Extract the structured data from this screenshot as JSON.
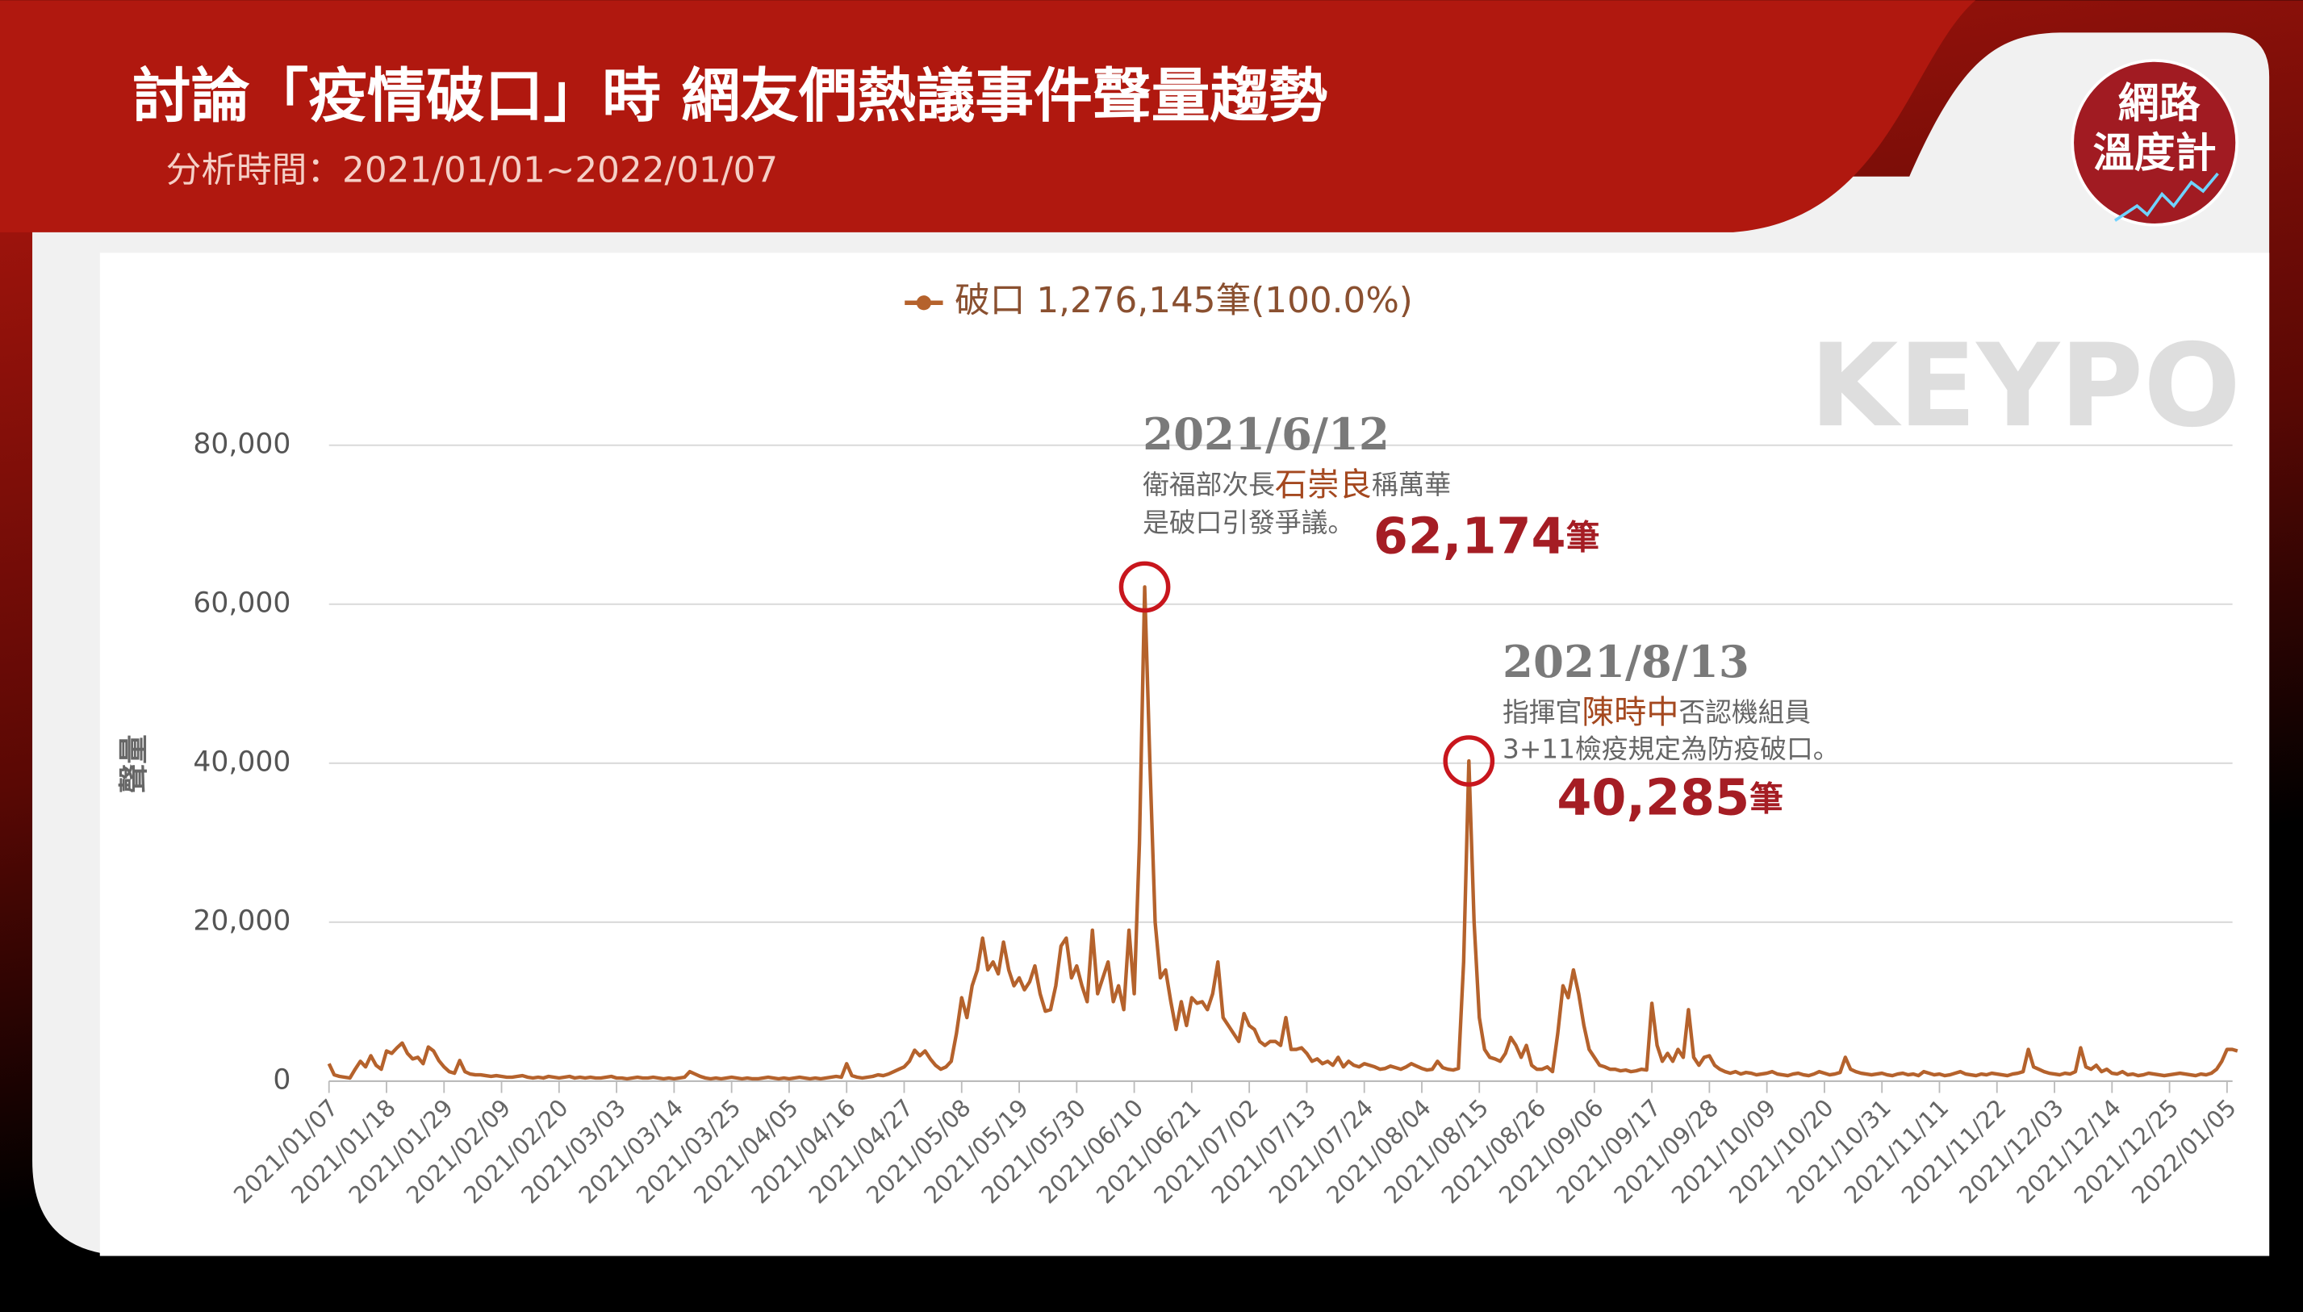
{
  "header": {
    "title": "討論「疫情破口」時  網友們熱議事件聲量趨勢",
    "subtitle": "分析時間：2021/01/01~2022/01/07"
  },
  "logo": {
    "line1": "網路",
    "line2": "溫度計"
  },
  "watermark": "KEYPO",
  "chart_data": {
    "type": "line",
    "y_label": "聲量",
    "grid": true,
    "legend": "top",
    "ylim": [
      0,
      80000
    ],
    "yticks": [
      0,
      {
        "value": 20000,
        "label": "20,000"
      },
      {
        "value": 40000,
        "label": "40,000"
      },
      {
        "value": 60000,
        "label": "60,000"
      },
      {
        "value": 80000,
        "label": "80,000"
      }
    ],
    "categories": [
      "2021/01/07",
      null,
      null,
      null,
      null,
      null,
      null,
      null,
      null,
      null,
      null,
      "2021/01/18",
      null,
      null,
      null,
      null,
      null,
      null,
      null,
      null,
      null,
      null,
      "2021/01/29",
      null,
      null,
      null,
      null,
      null,
      null,
      null,
      null,
      null,
      null,
      "2021/02/09",
      null,
      null,
      null,
      null,
      null,
      null,
      null,
      null,
      null,
      null,
      "2021/02/20",
      null,
      null,
      null,
      null,
      null,
      null,
      null,
      null,
      null,
      null,
      "2021/03/03",
      null,
      null,
      null,
      null,
      null,
      null,
      null,
      null,
      null,
      null,
      "2021/03/14",
      null,
      null,
      null,
      null,
      null,
      null,
      null,
      null,
      null,
      null,
      "2021/03/25",
      null,
      null,
      null,
      null,
      null,
      null,
      null,
      null,
      null,
      null,
      "2021/04/05",
      null,
      null,
      null,
      null,
      null,
      null,
      null,
      null,
      null,
      null,
      "2021/04/16",
      null,
      null,
      null,
      null,
      null,
      null,
      null,
      null,
      null,
      null,
      "2021/04/27",
      null,
      null,
      null,
      null,
      null,
      null,
      null,
      null,
      null,
      null,
      "2021/05/08",
      null,
      null,
      null,
      null,
      null,
      null,
      null,
      null,
      null,
      null,
      "2021/05/19",
      null,
      null,
      null,
      null,
      null,
      null,
      null,
      null,
      null,
      null,
      "2021/05/30",
      null,
      null,
      null,
      null,
      null,
      null,
      null,
      null,
      null,
      null,
      "2021/06/10",
      null,
      null,
      null,
      null,
      null,
      null,
      null,
      null,
      null,
      null,
      "2021/06/21",
      null,
      null,
      null,
      null,
      null,
      null,
      null,
      null,
      null,
      null,
      "2021/07/02",
      null,
      null,
      null,
      null,
      null,
      null,
      null,
      null,
      null,
      null,
      "2021/07/13",
      null,
      null,
      null,
      null,
      null,
      null,
      null,
      null,
      null,
      null,
      "2021/07/24",
      null,
      null,
      null,
      null,
      null,
      null,
      null,
      null,
      null,
      null,
      "2021/08/04",
      null,
      null,
      null,
      null,
      null,
      null,
      null,
      null,
      null,
      null,
      "2021/08/15",
      null,
      null,
      null,
      null,
      null,
      null,
      null,
      null,
      null,
      null,
      "2021/08/26",
      null,
      null,
      null,
      null,
      null,
      null,
      null,
      null,
      null,
      null,
      "2021/09/06",
      null,
      null,
      null,
      null,
      null,
      null,
      null,
      null,
      null,
      null,
      "2021/09/17",
      null,
      null,
      null,
      null,
      null,
      null,
      null,
      null,
      null,
      null,
      "2021/09/28",
      null,
      null,
      null,
      null,
      null,
      null,
      null,
      null,
      null,
      null,
      "2021/10/09",
      null,
      null,
      null,
      null,
      null,
      null,
      null,
      null,
      null,
      null,
      "2021/10/20",
      null,
      null,
      null,
      null,
      null,
      null,
      null,
      null,
      null,
      null,
      "2021/10/31",
      null,
      null,
      null,
      null,
      null,
      null,
      null,
      null,
      null,
      null,
      "2021/11/11",
      null,
      null,
      null,
      null,
      null,
      null,
      null,
      null,
      null,
      null,
      "2021/11/22",
      null,
      null,
      null,
      null,
      null,
      null,
      null,
      null,
      null,
      null,
      "2021/12/03",
      null,
      null,
      null,
      null,
      null,
      null,
      null,
      null,
      null,
      null,
      "2021/12/14",
      null,
      null,
      null,
      null,
      null,
      null,
      null,
      null,
      null,
      null,
      "2021/12/25",
      null,
      null,
      null,
      null,
      null,
      null,
      null,
      null,
      null,
      null,
      "2022/01/05",
      null,
      null
    ],
    "series": [
      {
        "name": "破口 1,276,145筆(100.0%)",
        "color": "#b5622c",
        "values": [
          2200,
          800,
          600,
          500,
          400,
          1500,
          2500,
          1800,
          3200,
          2000,
          1500,
          3800,
          3500,
          4200,
          4800,
          3500,
          2800,
          3000,
          2200,
          4300,
          3800,
          2600,
          1800,
          1200,
          1000,
          2600,
          1200,
          900,
          800,
          800,
          700,
          600,
          700,
          600,
          500,
          500,
          600,
          700,
          500,
          400,
          500,
          400,
          600,
          500,
          400,
          500,
          600,
          400,
          500,
          400,
          500,
          400,
          400,
          500,
          600,
          400,
          400,
          300,
          400,
          500,
          400,
          400,
          500,
          400,
          300,
          400,
          300,
          400,
          500,
          1200,
          900,
          600,
          400,
          300,
          400,
          300,
          400,
          500,
          400,
          300,
          400,
          300,
          300,
          400,
          500,
          400,
          300,
          400,
          300,
          400,
          500,
          400,
          300,
          400,
          300,
          400,
          500,
          600,
          500,
          2200,
          700,
          500,
          400,
          500,
          600,
          800,
          700,
          900,
          1200,
          1500,
          1800,
          2500,
          3900,
          3200,
          3800,
          2800,
          2000,
          1500,
          1800,
          2500,
          6000,
          10500,
          8000,
          12000,
          14000,
          18000,
          14000,
          15000,
          13500,
          17500,
          14000,
          12000,
          13000,
          11500,
          12500,
          14500,
          11000,
          8800,
          9000,
          12000,
          17000,
          18000,
          13000,
          14500,
          12000,
          10000,
          19000,
          11000,
          13000,
          15000,
          10000,
          12000,
          9000,
          19000,
          11000,
          30000,
          62174,
          40000,
          20000,
          13000,
          14000,
          10000,
          6500,
          10000,
          7000,
          10500,
          9800,
          10000,
          9000,
          11000,
          15000,
          8000,
          7000,
          6000,
          5000,
          8500,
          7000,
          6500,
          5000,
          4500,
          5000,
          5000,
          4500,
          8000,
          4000,
          4000,
          4200,
          3500,
          2500,
          2800,
          2200,
          2500,
          2000,
          3000,
          1800,
          2500,
          2000,
          1800,
          2200,
          2000,
          1800,
          1500,
          1600,
          1900,
          1700,
          1500,
          1800,
          2200,
          1900,
          1600,
          1400,
          1500,
          2500,
          1700,
          1500,
          1400,
          1600,
          15000,
          40285,
          20000,
          8000,
          4000,
          3000,
          2800,
          2500,
          3500,
          5500,
          4500,
          3000,
          4500,
          2000,
          1500,
          1500,
          1800,
          1200,
          6000,
          12000,
          10500,
          14000,
          11000,
          7000,
          4000,
          3000,
          2000,
          1800,
          1500,
          1500,
          1300,
          1400,
          1200,
          1300,
          1500,
          1400,
          9800,
          4500,
          2500,
          3500,
          2500,
          4000,
          3000,
          9000,
          3000,
          2000,
          3000,
          3200,
          2000,
          1500,
          1200,
          1000,
          1200,
          900,
          1100,
          1000,
          800,
          900,
          1000,
          1200,
          900,
          800,
          700,
          900,
          1000,
          800,
          700,
          900,
          1200,
          1000,
          800,
          900,
          1100,
          3000,
          1500,
          1200,
          1000,
          900,
          800,
          900,
          1000,
          800,
          700,
          900,
          1000,
          800,
          900,
          700,
          1200,
          1000,
          800,
          900,
          700,
          800,
          1000,
          1200,
          900,
          800,
          700,
          900,
          800,
          1000,
          900,
          800,
          700,
          900,
          1000,
          1200,
          4000,
          1800,
          1500,
          1200,
          1000,
          900,
          800,
          1000,
          900,
          1200,
          4200,
          1800,
          1500,
          2000,
          1200,
          1500,
          1000,
          900,
          1200,
          800,
          900,
          700,
          800,
          1000,
          900,
          800,
          700,
          800,
          900,
          1000,
          900,
          800,
          700,
          900,
          800,
          1000,
          1500,
          2500,
          4000,
          4000,
          3800
        ]
      }
    ],
    "annotations": [
      {
        "date": "2021/6/12",
        "lines": [
          [
            "衛福部次長",
            "石崇良",
            "稱萬華"
          ],
          [
            "是破口引發爭議。"
          ]
        ],
        "value_label": "62,174",
        "unit": "筆"
      },
      {
        "date": "2021/8/13",
        "lines": [
          [
            "指揮官",
            "陳時中",
            "否認機組員"
          ],
          [
            "3+11檢疫規定為防疫破口。"
          ]
        ],
        "value_label": "40,285",
        "unit": "筆"
      }
    ]
  }
}
